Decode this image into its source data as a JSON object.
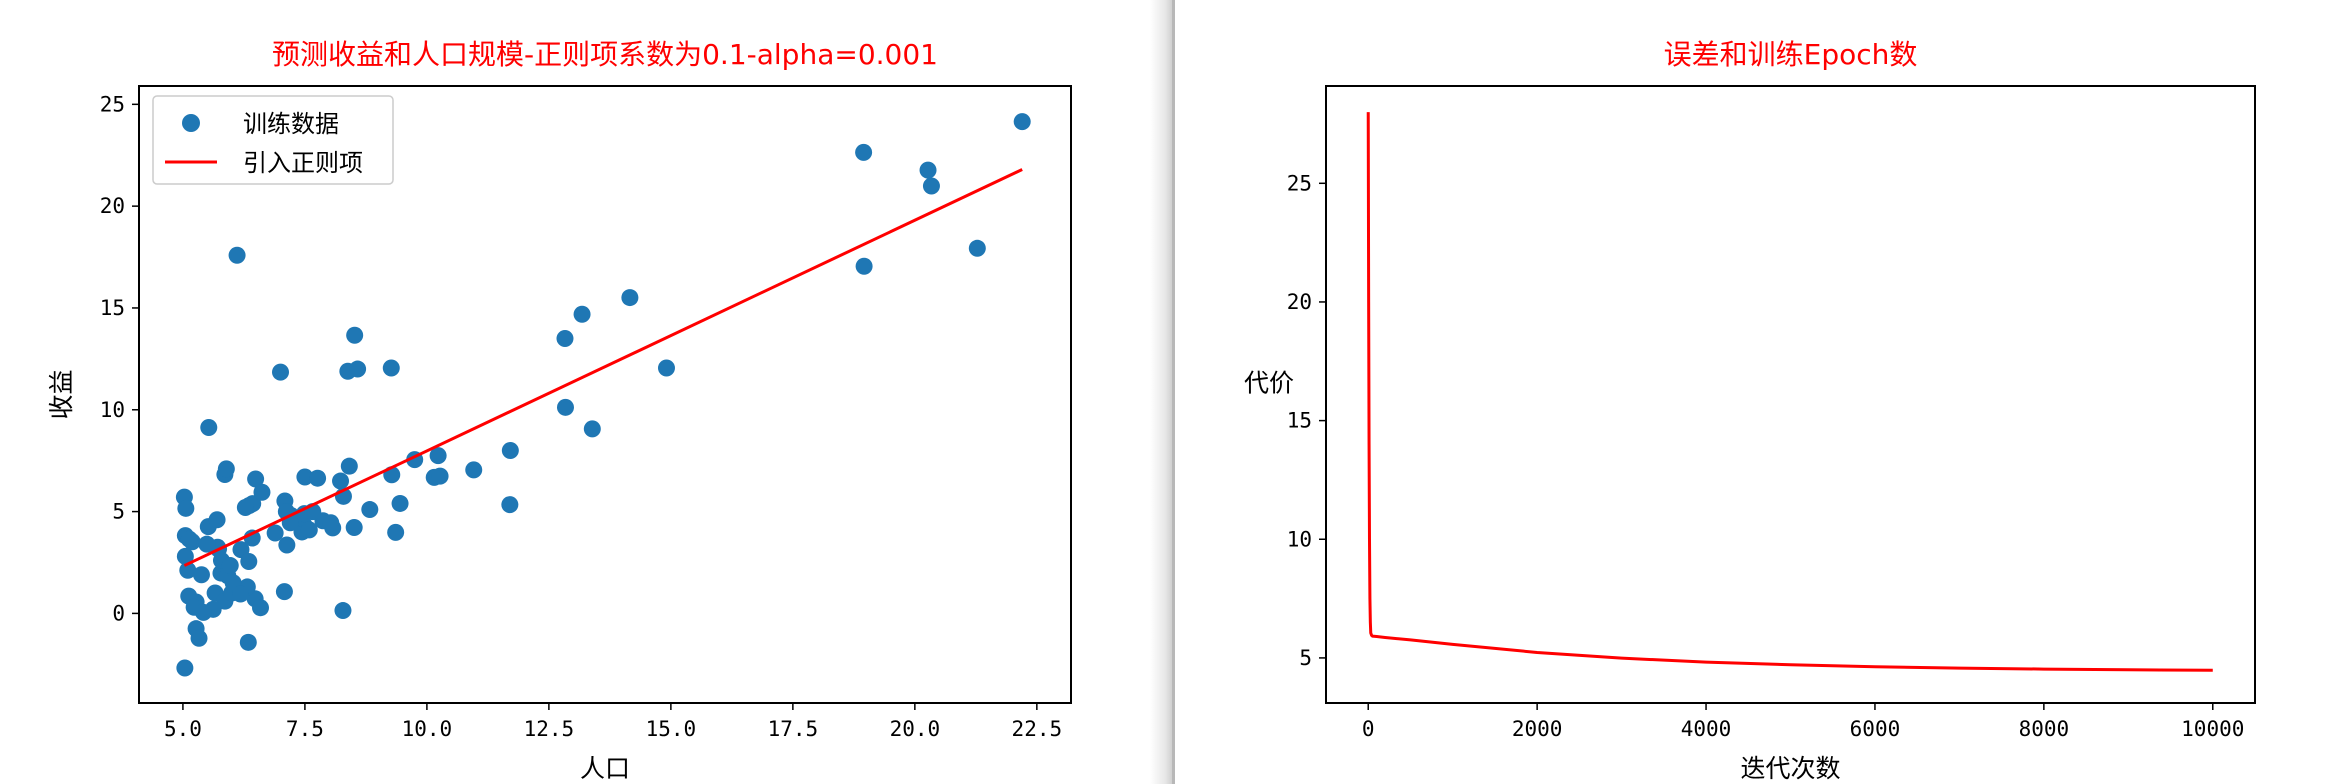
{
  "chart_data": [
    {
      "type": "scatter",
      "title": "预测收益和人口规模-正则项系数为0.1-alpha=0.001",
      "title_color": "#ff0000",
      "xlabel": "人口",
      "ylabel": "收益",
      "xlim": [
        4.1,
        23.2
      ],
      "ylim": [
        -4.4,
        25.9
      ],
      "xticks": [
        "5.0",
        "7.5",
        "10.0",
        "12.5",
        "15.0",
        "17.5",
        "20.0",
        "22.5"
      ],
      "xtick_values": [
        5.0,
        7.5,
        10.0,
        12.5,
        15.0,
        17.5,
        20.0,
        22.5
      ],
      "yticks": [
        "0",
        "5",
        "10",
        "15",
        "20",
        "25"
      ],
      "ytick_values": [
        0,
        5,
        10,
        15,
        20,
        25
      ],
      "legend_position": "top-left",
      "legend": [
        "训练数据",
        "引入正则项"
      ],
      "series": [
        {
          "name": "训练数据",
          "kind": "scatter",
          "color": "#1f77b4",
          "points": [
            [
              6.11,
              17.59
            ],
            [
              5.53,
              9.13
            ],
            [
              8.52,
              13.66
            ],
            [
              7.0,
              11.85
            ],
            [
              5.86,
              6.82
            ],
            [
              8.38,
              11.89
            ],
            [
              7.48,
              4.35
            ],
            [
              8.58,
              12.0
            ],
            [
              6.49,
              6.6
            ],
            [
              5.05,
              3.82
            ],
            [
              5.71,
              3.25
            ],
            [
              14.16,
              15.51
            ],
            [
              5.73,
              3.16
            ],
            [
              8.41,
              7.23
            ],
            [
              6.48,
              0.72
            ],
            [
              5.19,
              3.52
            ],
            [
              6.36,
              5.3
            ],
            [
              5.27,
              0.56
            ],
            [
              5.13,
              3.65
            ],
            [
              6.43,
              5.39
            ],
            [
              7.09,
              5.52
            ],
            [
              6.19,
              3.13
            ],
            [
              5.78,
              1.98
            ],
            [
              5.52,
              4.26
            ],
            [
              5.12,
              0.85
            ],
            [
              5.03,
              5.71
            ],
            [
              5.06,
              5.16
            ],
            [
              5.05,
              2.8
            ],
            [
              5.1,
              2.12
            ],
            [
              5.27,
              -0.75
            ],
            [
              5.33,
              -1.22
            ],
            [
              5.04,
              -2.68
            ],
            [
              5.23,
              0.3
            ],
            [
              5.38,
              1.9
            ],
            [
              5.66,
              1.0
            ],
            [
              5.86,
              0.6
            ],
            [
              6.34,
              -1.42
            ],
            [
              6.32,
              1.3
            ],
            [
              6.0,
              1.0
            ],
            [
              5.92,
              1.85
            ],
            [
              6.59,
              0.28
            ],
            [
              7.08,
              1.07
            ],
            [
              8.28,
              0.14
            ],
            [
              7.13,
              3.36
            ],
            [
              7.44,
              4.0
            ],
            [
              7.59,
              4.1
            ],
            [
              7.87,
              4.55
            ],
            [
              8.07,
              4.2
            ],
            [
              8.51,
              4.22
            ],
            [
              7.37,
              4.69
            ],
            [
              7.5,
              6.7
            ],
            [
              7.76,
              6.64
            ],
            [
              8.03,
              4.45
            ],
            [
              8.23,
              6.5
            ],
            [
              8.83,
              5.1
            ],
            [
              9.28,
              6.81
            ],
            [
              9.75,
              7.55
            ],
            [
              10.15,
              6.68
            ],
            [
              10.23,
              7.75
            ],
            [
              10.27,
              6.74
            ],
            [
              10.96,
              7.05
            ],
            [
              11.71,
              8.0
            ],
            [
              11.7,
              5.34
            ],
            [
              9.36,
              3.98
            ],
            [
              9.45,
              5.4
            ],
            [
              9.27,
              12.05
            ],
            [
              12.83,
              13.5
            ],
            [
              13.18,
              14.69
            ],
            [
              12.84,
              10.12
            ],
            [
              13.39,
              9.06
            ],
            [
              14.91,
              12.05
            ],
            [
              18.96,
              17.05
            ],
            [
              18.95,
              22.64
            ],
            [
              20.27,
              21.77
            ],
            [
              20.34,
              20.99
            ],
            [
              21.28,
              17.93
            ],
            [
              22.2,
              24.15
            ],
            [
              5.79,
              2.6
            ],
            [
              6.03,
              1.5
            ],
            [
              6.35,
              2.55
            ],
            [
              6.42,
              3.7
            ],
            [
              6.89,
              3.95
            ],
            [
              7.22,
              4.8
            ],
            [
              7.49,
              4.9
            ],
            [
              7.12,
              5.0
            ],
            [
              7.2,
              4.45
            ],
            [
              5.97,
              2.35
            ],
            [
              5.62,
              0.2
            ],
            [
              6.18,
              0.95
            ],
            [
              6.28,
              5.2
            ],
            [
              5.89,
              7.1
            ],
            [
              6.62,
              5.95
            ],
            [
              7.66,
              5.0
            ],
            [
              8.29,
              5.75
            ],
            [
              5.49,
              3.4
            ],
            [
              5.7,
              4.6
            ],
            [
              5.42,
              0.05
            ]
          ]
        },
        {
          "name": "引入正则项",
          "kind": "line",
          "color": "#ff0000",
          "x": [
            5.03,
            22.2
          ],
          "y": [
            2.35,
            21.8
          ]
        }
      ]
    },
    {
      "type": "line",
      "title": "误差和训练Epoch数",
      "title_color": "#ff0000",
      "xlabel": "迭代次数",
      "ylabel": "代价",
      "xlim": [
        -500,
        10500
      ],
      "ylim": [
        3.1,
        29.1
      ],
      "xticks": [
        "0",
        "2000",
        "4000",
        "6000",
        "8000",
        "10000"
      ],
      "xtick_values": [
        0,
        2000,
        4000,
        6000,
        8000,
        10000
      ],
      "yticks": [
        "5",
        "10",
        "15",
        "20",
        "25"
      ],
      "ytick_values": [
        5,
        10,
        15,
        20,
        25
      ],
      "series": [
        {
          "kind": "line",
          "color": "#ff0000",
          "x": [
            0,
            5,
            10,
            15,
            20,
            25,
            30,
            40,
            50,
            100,
            200,
            500,
            1000,
            2000,
            3000,
            4000,
            5000,
            6000,
            7000,
            8000,
            9000,
            10000
          ],
          "y": [
            28.0,
            20.0,
            14.0,
            10.0,
            7.5,
            6.5,
            6.05,
            5.95,
            5.92,
            5.9,
            5.86,
            5.76,
            5.57,
            5.23,
            4.99,
            4.82,
            4.71,
            4.63,
            4.57,
            4.53,
            4.5,
            4.48
          ]
        }
      ]
    }
  ]
}
